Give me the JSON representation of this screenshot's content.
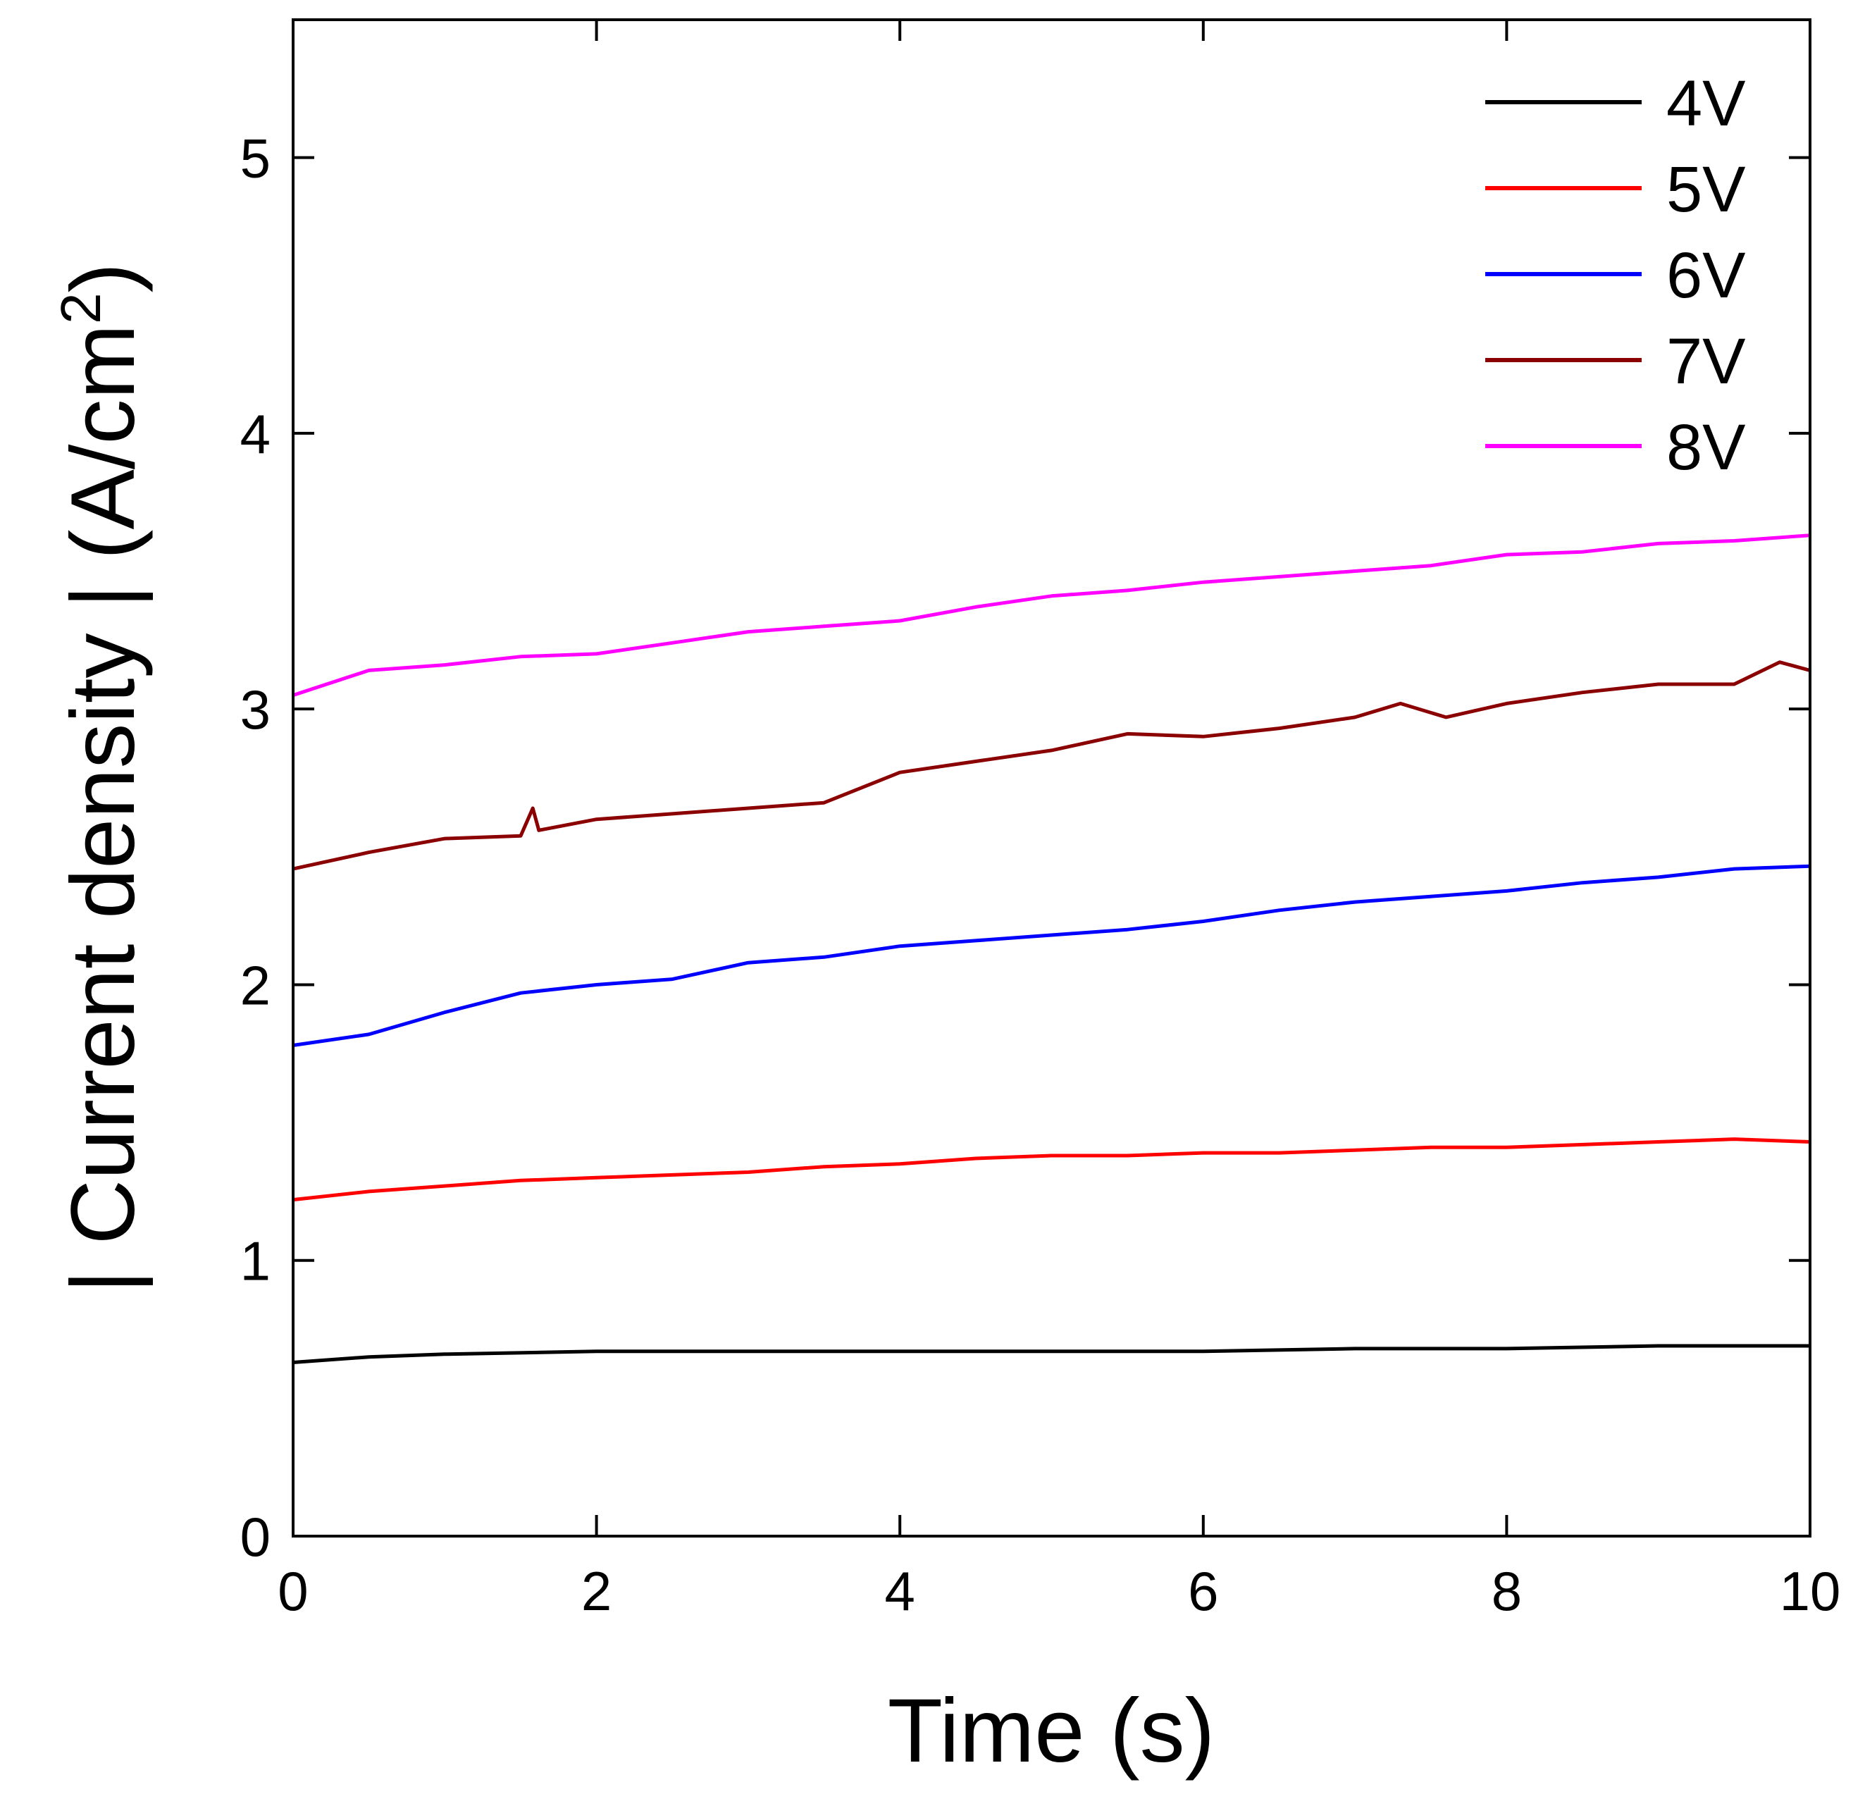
{
  "chart_data": {
    "type": "line",
    "title": "",
    "xlabel": "Time (s)",
    "ylabel_main": "| Current density | (A/cm",
    "ylabel_sup": "2",
    "ylabel_close": ")",
    "xlim": [
      0,
      10
    ],
    "ylim": [
      0,
      5.5
    ],
    "xticks": [
      0,
      2,
      4,
      6,
      8,
      10
    ],
    "yticks": [
      0,
      1,
      2,
      3,
      4,
      5
    ],
    "grid": false,
    "legend_position": "top-right",
    "series": [
      {
        "name": "4V",
        "color": "#000000",
        "x": [
          0,
          0.5,
          1,
          2,
          3,
          4,
          5,
          6,
          7,
          8,
          9,
          10
        ],
        "y": [
          0.63,
          0.65,
          0.66,
          0.67,
          0.67,
          0.67,
          0.67,
          0.67,
          0.68,
          0.68,
          0.69,
          0.69
        ]
      },
      {
        "name": "5V",
        "color": "#ff0000",
        "x": [
          0,
          0.5,
          1,
          1.5,
          2,
          2.5,
          3,
          3.5,
          4,
          4.5,
          5,
          5.5,
          6,
          6.5,
          7,
          7.5,
          8,
          8.5,
          9,
          9.5,
          10
        ],
        "y": [
          1.22,
          1.25,
          1.27,
          1.29,
          1.3,
          1.31,
          1.32,
          1.34,
          1.35,
          1.37,
          1.38,
          1.38,
          1.39,
          1.39,
          1.4,
          1.41,
          1.41,
          1.42,
          1.43,
          1.44,
          1.43
        ]
      },
      {
        "name": "6V",
        "color": "#0000ff",
        "x": [
          0,
          0.5,
          1,
          1.5,
          2,
          2.5,
          3,
          3.5,
          4,
          4.5,
          5,
          5.5,
          6,
          6.5,
          7,
          7.5,
          8,
          8.5,
          9,
          9.5,
          10
        ],
        "y": [
          1.78,
          1.82,
          1.9,
          1.97,
          2.0,
          2.02,
          2.08,
          2.1,
          2.14,
          2.16,
          2.18,
          2.2,
          2.23,
          2.27,
          2.3,
          2.32,
          2.34,
          2.37,
          2.39,
          2.42,
          2.43
        ]
      },
      {
        "name": "7V",
        "color": "#8b0000",
        "x": [
          0,
          0.5,
          1,
          1.5,
          1.58,
          1.62,
          2,
          2.5,
          3,
          3.5,
          4,
          4.5,
          5,
          5.5,
          6,
          6.5,
          7,
          7.3,
          7.6,
          8,
          8.5,
          9,
          9.5,
          9.8,
          10
        ],
        "y": [
          2.42,
          2.48,
          2.53,
          2.54,
          2.64,
          2.56,
          2.6,
          2.62,
          2.64,
          2.66,
          2.77,
          2.81,
          2.85,
          2.91,
          2.9,
          2.93,
          2.97,
          3.02,
          2.97,
          3.02,
          3.06,
          3.09,
          3.09,
          3.17,
          3.14
        ]
      },
      {
        "name": "8V",
        "color": "#ff00ff",
        "x": [
          0,
          0.5,
          1,
          1.5,
          2,
          2.5,
          3,
          3.5,
          4,
          4.5,
          5,
          5.5,
          6,
          6.5,
          7,
          7.5,
          8,
          8.5,
          9,
          9.5,
          10
        ],
        "y": [
          3.05,
          3.14,
          3.16,
          3.19,
          3.2,
          3.24,
          3.28,
          3.3,
          3.32,
          3.37,
          3.41,
          3.43,
          3.46,
          3.48,
          3.5,
          3.52,
          3.56,
          3.57,
          3.6,
          3.61,
          3.63
        ]
      }
    ]
  }
}
